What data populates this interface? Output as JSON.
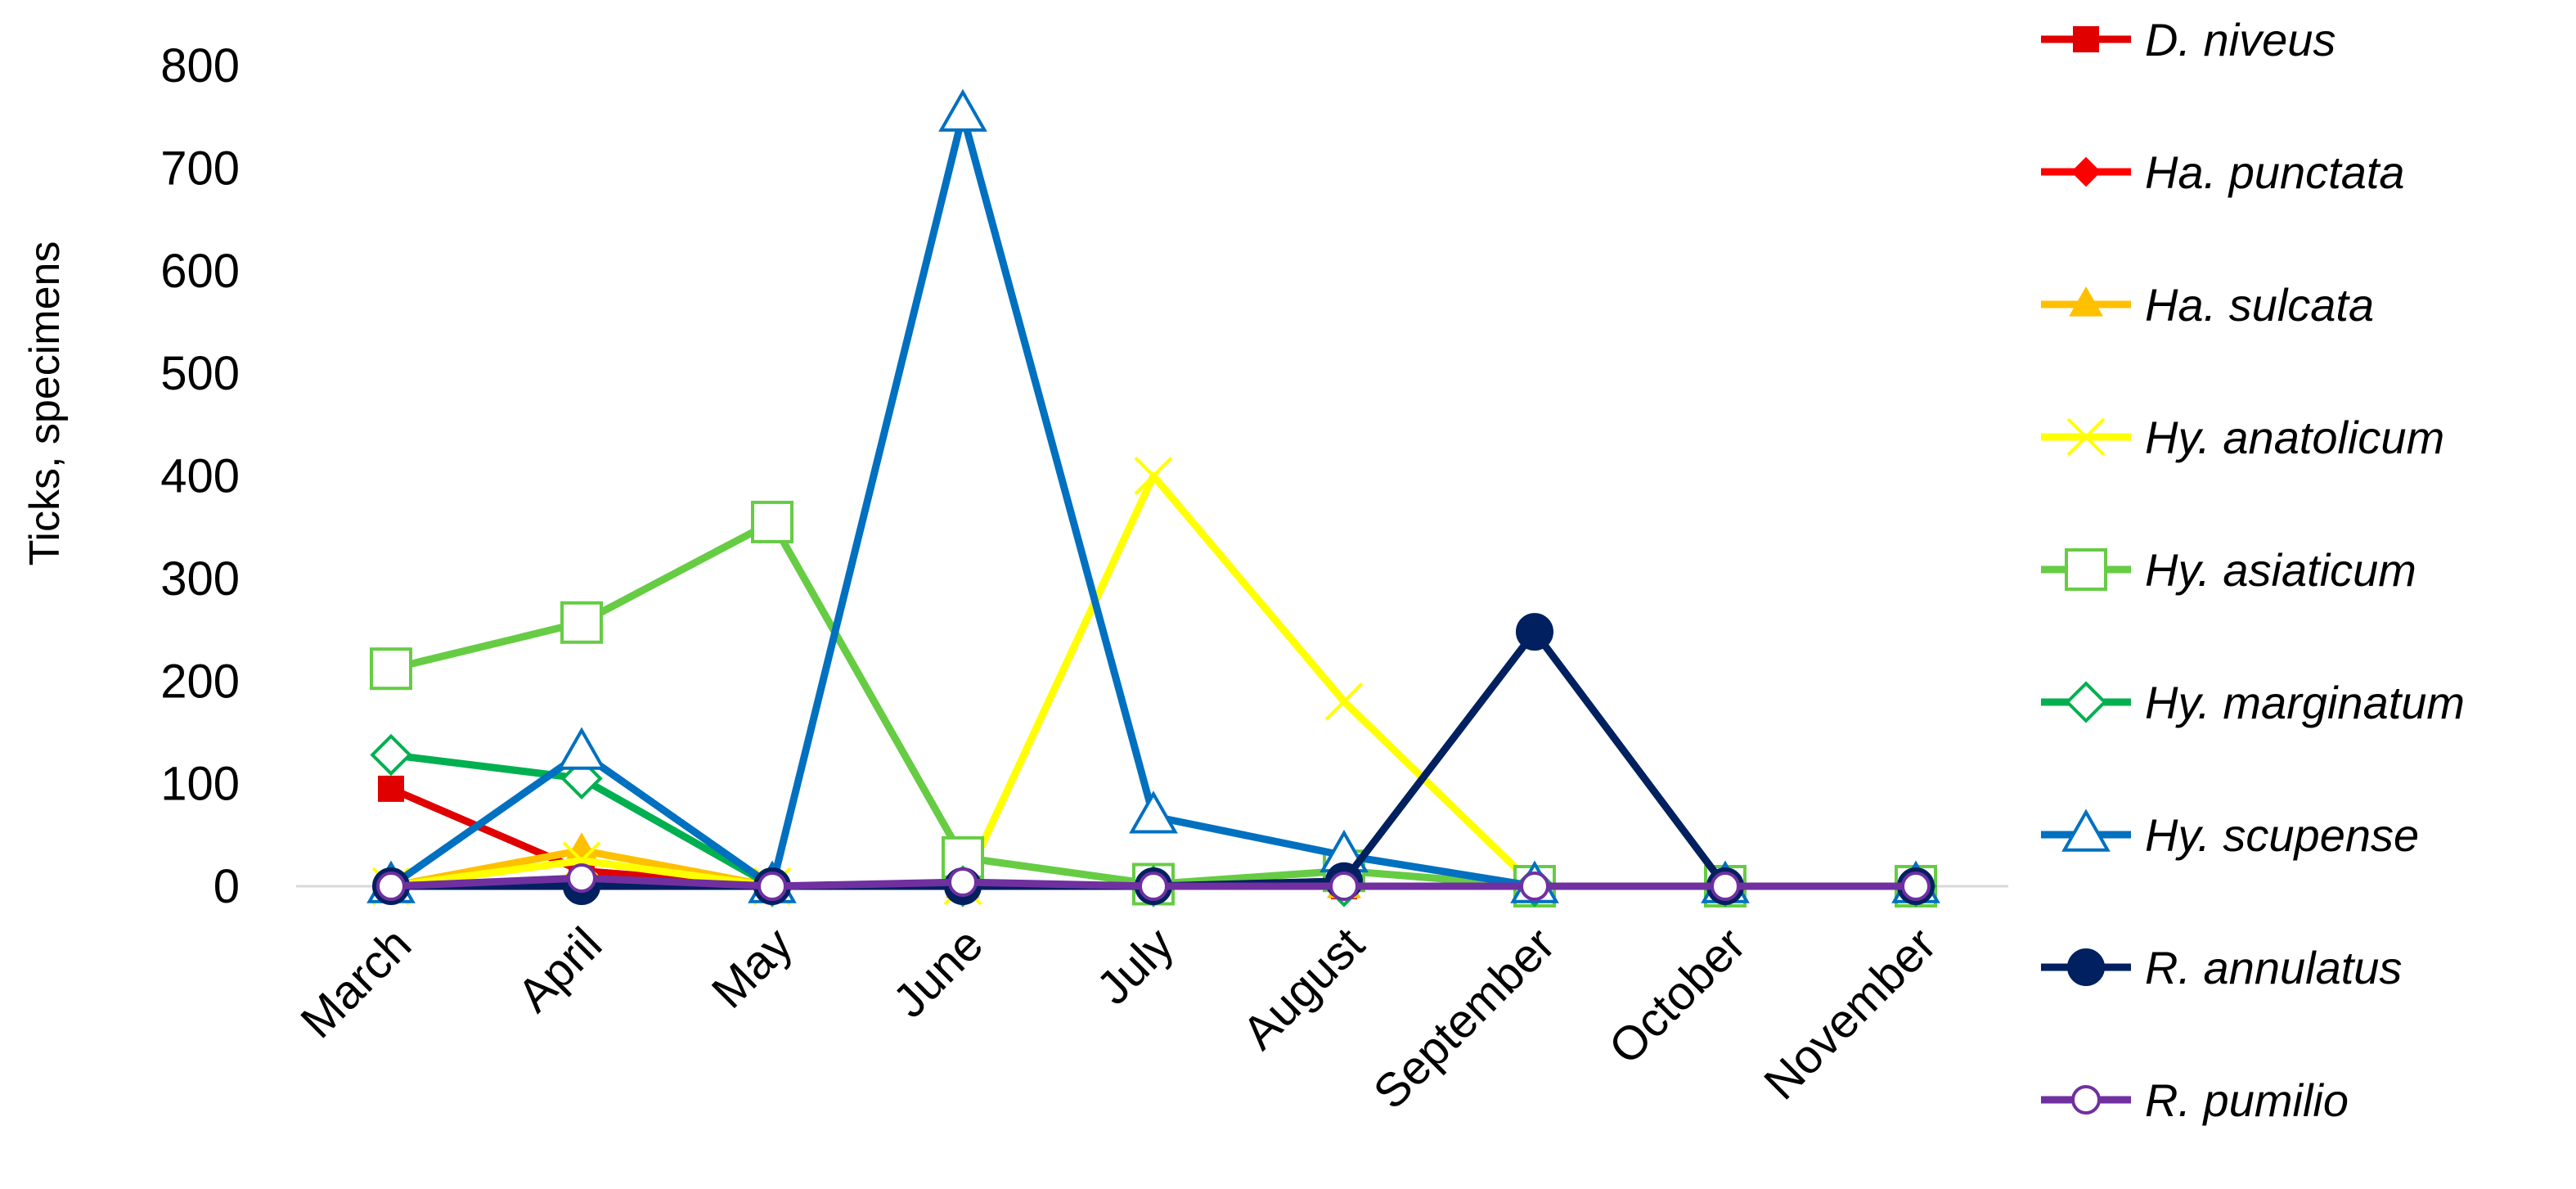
{
  "chart_data": {
    "type": "line",
    "title": "",
    "xlabel": "",
    "ylabel": "Ticks, specimens",
    "categories": [
      "March",
      "April",
      "May",
      "June",
      "July",
      "August",
      "September",
      "October",
      "November"
    ],
    "y_ticks": [
      "0",
      "100",
      "200",
      "300",
      "400",
      "500",
      "600",
      "700",
      "800"
    ],
    "ylim": [
      0,
      800
    ],
    "grid": false,
    "legend_position": "right",
    "series": [
      {
        "name": "D. niveus",
        "color": "#e00000",
        "marker": "square-filled",
        "values": [
          95,
          15,
          0,
          0,
          0,
          0,
          0,
          0,
          0
        ]
      },
      {
        "name": "Ha. punctata",
        "color": "#ff0000",
        "marker": "diamond-filled",
        "values": [
          0,
          0,
          0,
          0,
          0,
          0,
          0,
          0,
          0
        ]
      },
      {
        "name": "Ha. sulcata",
        "color": "#ffc000",
        "marker": "triangle-filled",
        "values": [
          0,
          35,
          0,
          0,
          0,
          0,
          0,
          0,
          0
        ]
      },
      {
        "name": "Hy. anatolicum",
        "color": "#ffff00",
        "marker": "x",
        "values": [
          0,
          25,
          0,
          0,
          400,
          180,
          0,
          0,
          0
        ]
      },
      {
        "name": "Hy. asiaticum",
        "color": "#66cc44",
        "marker": "square-open",
        "values": [
          212,
          257,
          355,
          28,
          2,
          15,
          0,
          0,
          0
        ]
      },
      {
        "name": "Hy. marginatum",
        "color": "#00b050",
        "marker": "diamond-open",
        "values": [
          128,
          105,
          0,
          0,
          0,
          0,
          0,
          0,
          0
        ]
      },
      {
        "name": "Hy. scupense",
        "color": "#0070c0",
        "marker": "triangle-open",
        "values": [
          0,
          130,
          0,
          752,
          68,
          30,
          0,
          0,
          0
        ]
      },
      {
        "name": "R. annulatus",
        "color": "#002060",
        "marker": "circle-filled",
        "values": [
          0,
          0,
          0,
          0,
          0,
          5,
          248,
          0,
          0
        ]
      },
      {
        "name": "R. pumilio",
        "color": "#7030a0",
        "marker": "circle-open",
        "values": [
          0,
          8,
          0,
          4,
          0,
          0,
          0,
          0,
          0
        ]
      }
    ]
  }
}
